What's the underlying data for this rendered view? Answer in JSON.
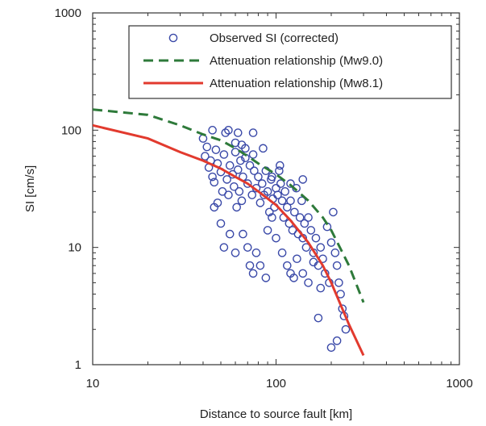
{
  "chart_data": {
    "type": "scatter",
    "title": "",
    "xlabel": "Distance to source fault [km]",
    "ylabel": "SI [cm/s]",
    "xscale": "log",
    "yscale": "log",
    "xlim": [
      10,
      1000
    ],
    "ylim": [
      1,
      1000
    ],
    "xticks": [
      10,
      100,
      1000
    ],
    "xtick_labels": [
      "10",
      "100",
      "1000"
    ],
    "yticks": [
      1,
      10,
      100,
      1000
    ],
    "ytick_labels": [
      "1",
      "10",
      "100",
      "1000"
    ],
    "grid": false,
    "legend_position": "top-right",
    "series": [
      {
        "name": "Observed SI (corrected)",
        "kind": "scatter",
        "marker": "open-circle",
        "color": "#3a49a8",
        "points": [
          [
            40,
            85
          ],
          [
            41,
            60
          ],
          [
            42,
            72
          ],
          [
            43,
            48
          ],
          [
            44,
            55
          ],
          [
            45,
            40
          ],
          [
            46,
            36
          ],
          [
            47,
            68
          ],
          [
            48,
            52
          ],
          [
            50,
            44
          ],
          [
            51,
            30
          ],
          [
            52,
            62
          ],
          [
            53,
            95
          ],
          [
            54,
            38
          ],
          [
            55,
            28
          ],
          [
            56,
            50
          ],
          [
            58,
            42
          ],
          [
            59,
            33
          ],
          [
            60,
            65
          ],
          [
            61,
            22
          ],
          [
            62,
            46
          ],
          [
            63,
            30
          ],
          [
            64,
            55
          ],
          [
            65,
            25
          ],
          [
            66,
            40
          ],
          [
            68,
            70
          ],
          [
            70,
            35
          ],
          [
            72,
            50
          ],
          [
            74,
            28
          ],
          [
            75,
            62
          ],
          [
            76,
            45
          ],
          [
            78,
            32
          ],
          [
            80,
            40
          ],
          [
            82,
            24
          ],
          [
            84,
            35
          ],
          [
            86,
            28
          ],
          [
            88,
            45
          ],
          [
            90,
            30
          ],
          [
            92,
            20
          ],
          [
            94,
            38
          ],
          [
            96,
            26
          ],
          [
            98,
            22
          ],
          [
            100,
            32
          ],
          [
            102,
            28
          ],
          [
            104,
            45
          ],
          [
            106,
            35
          ],
          [
            108,
            25
          ],
          [
            110,
            18
          ],
          [
            112,
            30
          ],
          [
            115,
            22
          ],
          [
            118,
            16
          ],
          [
            120,
            25
          ],
          [
            123,
            14
          ],
          [
            126,
            20
          ],
          [
            129,
            32
          ],
          [
            132,
            13
          ],
          [
            135,
            18
          ],
          [
            138,
            25
          ],
          [
            140,
            12
          ],
          [
            143,
            16
          ],
          [
            146,
            10
          ],
          [
            150,
            18
          ],
          [
            155,
            14
          ],
          [
            160,
            9
          ],
          [
            165,
            12
          ],
          [
            170,
            7
          ],
          [
            175,
            10
          ],
          [
            180,
            8
          ],
          [
            185,
            6
          ],
          [
            190,
            15
          ],
          [
            195,
            5
          ],
          [
            200,
            11
          ],
          [
            205,
            20
          ],
          [
            210,
            9
          ],
          [
            215,
            7
          ],
          [
            220,
            5
          ],
          [
            225,
            4
          ],
          [
            230,
            3
          ],
          [
            235,
            2.6
          ],
          [
            240,
            2
          ],
          [
            200,
            1.4
          ],
          [
            215,
            1.6
          ],
          [
            170,
            2.5
          ],
          [
            46,
            22
          ],
          [
            48,
            24
          ],
          [
            50,
            16
          ],
          [
            52,
            10
          ],
          [
            56,
            13
          ],
          [
            60,
            9
          ],
          [
            62,
            95
          ],
          [
            66,
            13
          ],
          [
            70,
            10
          ],
          [
            72,
            7
          ],
          [
            75,
            6
          ],
          [
            78,
            9
          ],
          [
            82,
            7
          ],
          [
            88,
            5.5
          ],
          [
            90,
            14
          ],
          [
            95,
            18
          ],
          [
            100,
            12
          ],
          [
            108,
            9
          ],
          [
            115,
            7
          ],
          [
            120,
            6
          ],
          [
            125,
            5.5
          ],
          [
            130,
            8
          ],
          [
            140,
            6
          ],
          [
            150,
            5
          ],
          [
            160,
            7.5
          ],
          [
            175,
            4.5
          ],
          [
            140,
            38
          ],
          [
            45,
            100
          ],
          [
            55,
            100
          ],
          [
            65,
            75
          ],
          [
            75,
            95
          ],
          [
            85,
            70
          ],
          [
            95,
            40
          ],
          [
            105,
            50
          ],
          [
            120,
            35
          ],
          [
            60,
            78
          ],
          [
            68,
            58
          ]
        ]
      },
      {
        "name": "Attenuation relationship (Mw9.0)",
        "kind": "line",
        "style": "dashed",
        "color": "#2e7a3a",
        "points": [
          [
            10,
            150
          ],
          [
            20,
            135
          ],
          [
            30,
            110
          ],
          [
            40,
            92
          ],
          [
            50,
            82
          ],
          [
            60,
            70
          ],
          [
            70,
            60
          ],
          [
            80,
            52
          ],
          [
            100,
            42
          ],
          [
            120,
            34
          ],
          [
            150,
            25
          ],
          [
            180,
            18
          ],
          [
            200,
            14
          ],
          [
            250,
            7
          ],
          [
            300,
            3.4
          ]
        ]
      },
      {
        "name": "Attenuation relationship (Mw8.1)",
        "kind": "line",
        "style": "solid",
        "color": "#e23a2e",
        "points": [
          [
            10,
            110
          ],
          [
            20,
            85
          ],
          [
            30,
            65
          ],
          [
            40,
            55
          ],
          [
            50,
            47
          ],
          [
            60,
            40
          ],
          [
            70,
            35
          ],
          [
            80,
            30
          ],
          [
            100,
            23
          ],
          [
            120,
            17
          ],
          [
            150,
            11
          ],
          [
            180,
            7
          ],
          [
            200,
            5
          ],
          [
            250,
            2.2
          ],
          [
            300,
            1.2
          ]
        ]
      }
    ]
  }
}
